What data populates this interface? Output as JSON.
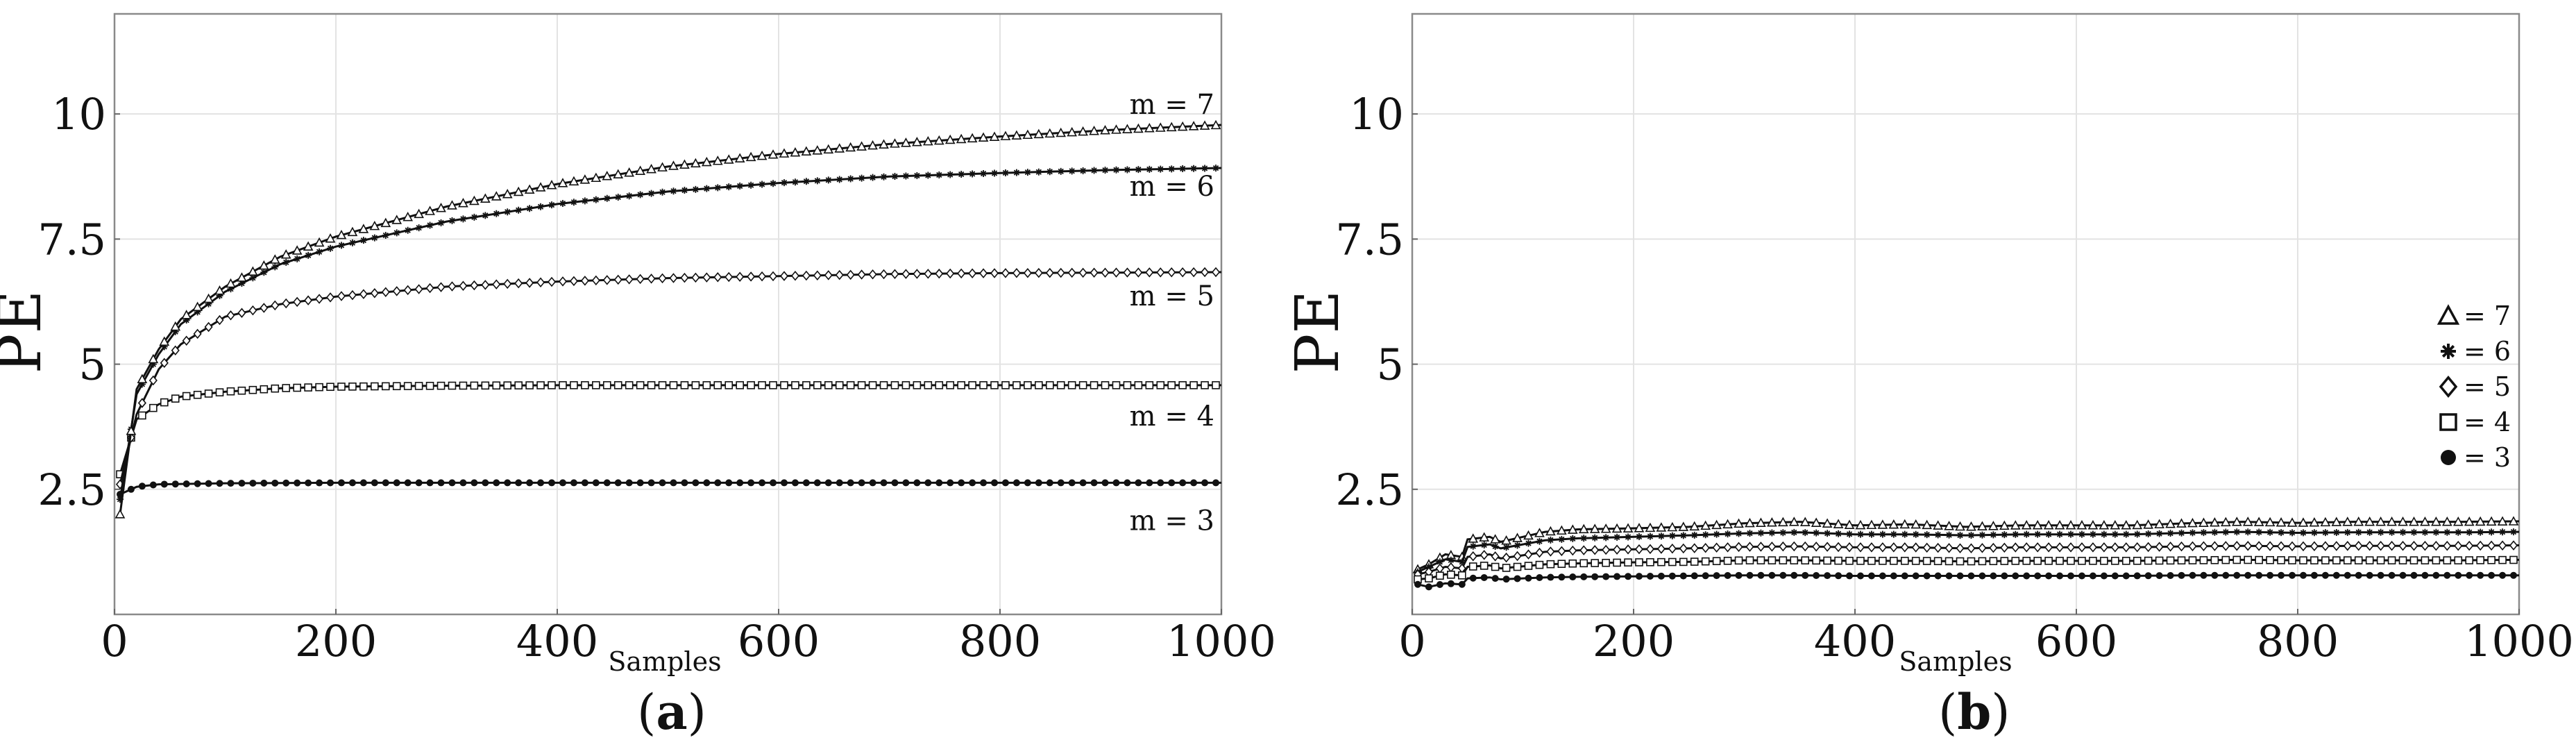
{
  "chart_data": [
    {
      "type": "line",
      "caption_letter": "a",
      "ylabel": "PE",
      "xlabel": "Samples",
      "xlim": [
        0,
        1000
      ],
      "ylim": [
        0,
        12
      ],
      "xticks": [
        "0",
        "200",
        "400",
        "600",
        "800",
        "1000"
      ],
      "yticks": [
        {
          "value": 2.5,
          "label": "2.5"
        },
        {
          "value": 5,
          "label": "5"
        },
        {
          "value": 7.5,
          "label": "7.5"
        },
        {
          "value": 10,
          "label": "10"
        }
      ],
      "grid": true,
      "annotations_position": "right end of each curve",
      "series": [
        {
          "name": "m = 3",
          "marker": "dot",
          "x": [
            5,
            20,
            40,
            100,
            200,
            300,
            400,
            500,
            600,
            700,
            800,
            900,
            1000
          ],
          "values": [
            2.4,
            2.55,
            2.6,
            2.62,
            2.63,
            2.63,
            2.63,
            2.63,
            2.63,
            2.63,
            2.63,
            2.63,
            2.63
          ]
        },
        {
          "name": "m = 4",
          "marker": "square",
          "x": [
            5,
            20,
            40,
            60,
            100,
            150,
            200,
            300,
            400,
            500,
            600,
            700,
            800,
            900,
            1000
          ],
          "values": [
            2.8,
            3.9,
            4.2,
            4.35,
            4.45,
            4.52,
            4.55,
            4.57,
            4.58,
            4.58,
            4.58,
            4.58,
            4.58,
            4.58,
            4.58
          ]
        },
        {
          "name": "m = 5",
          "marker": "diamond",
          "x": [
            5,
            20,
            40,
            60,
            100,
            150,
            200,
            300,
            400,
            500,
            600,
            700,
            800,
            900,
            1000
          ],
          "values": [
            2.6,
            4.0,
            4.9,
            5.4,
            5.95,
            6.2,
            6.35,
            6.55,
            6.65,
            6.72,
            6.76,
            6.8,
            6.82,
            6.83,
            6.84
          ]
        },
        {
          "name": "m = 6",
          "marker": "asterisk",
          "x": [
            5,
            20,
            40,
            60,
            100,
            150,
            200,
            300,
            400,
            500,
            600,
            700,
            800,
            900,
            1000
          ],
          "values": [
            2.3,
            4.4,
            5.2,
            5.8,
            6.45,
            7.0,
            7.35,
            7.85,
            8.2,
            8.45,
            8.62,
            8.75,
            8.82,
            8.88,
            8.92
          ]
        },
        {
          "name": "m = 7",
          "marker": "triangle",
          "x": [
            5,
            20,
            40,
            60,
            100,
            150,
            200,
            300,
            400,
            500,
            600,
            700,
            800,
            900,
            1000
          ],
          "values": [
            2.0,
            4.5,
            5.3,
            5.9,
            6.55,
            7.15,
            7.55,
            8.15,
            8.6,
            8.95,
            9.2,
            9.4,
            9.55,
            9.68,
            9.78
          ]
        }
      ]
    },
    {
      "type": "line",
      "caption_letter": "b",
      "ylabel": "PE",
      "xlabel": "Samples",
      "xlim": [
        0,
        1000
      ],
      "ylim": [
        0,
        12
      ],
      "xticks": [
        "0",
        "200",
        "400",
        "600",
        "800",
        "1000"
      ],
      "yticks": [
        {
          "value": 2.5,
          "label": "2.5"
        },
        {
          "value": 5,
          "label": "5"
        },
        {
          "value": 7.5,
          "label": "7.5"
        },
        {
          "value": 10,
          "label": "10"
        }
      ],
      "grid": true,
      "legend_position": "right",
      "series": [
        {
          "name": "= 7",
          "marker": "triangle",
          "x": [
            5,
            15,
            30,
            45,
            50,
            70,
            80,
            100,
            120,
            150,
            200,
            250,
            300,
            350,
            400,
            450,
            500,
            550,
            600,
            650,
            700,
            750,
            800,
            850,
            900,
            950,
            1000
          ],
          "values": [
            0.9,
            1.0,
            1.2,
            1.15,
            1.5,
            1.55,
            1.45,
            1.55,
            1.65,
            1.7,
            1.72,
            1.75,
            1.82,
            1.85,
            1.78,
            1.8,
            1.75,
            1.78,
            1.78,
            1.78,
            1.82,
            1.85,
            1.83,
            1.85,
            1.85,
            1.85,
            1.86
          ]
        },
        {
          "name": "= 6",
          "marker": "asterisk",
          "x": [
            5,
            15,
            30,
            45,
            50,
            70,
            80,
            100,
            120,
            150,
            200,
            250,
            300,
            350,
            400,
            450,
            500,
            550,
            600,
            650,
            700,
            750,
            800,
            850,
            900,
            950,
            1000
          ],
          "values": [
            0.85,
            0.95,
            1.1,
            1.05,
            1.35,
            1.4,
            1.32,
            1.4,
            1.48,
            1.52,
            1.55,
            1.58,
            1.62,
            1.64,
            1.6,
            1.6,
            1.58,
            1.6,
            1.6,
            1.6,
            1.63,
            1.65,
            1.63,
            1.64,
            1.64,
            1.64,
            1.65
          ]
        },
        {
          "name": "= 5",
          "marker": "diamond",
          "x": [
            5,
            15,
            30,
            45,
            50,
            70,
            80,
            100,
            120,
            150,
            200,
            250,
            300,
            350,
            400,
            450,
            500,
            550,
            600,
            650,
            700,
            750,
            800,
            850,
            900,
            950,
            1000
          ],
          "values": [
            0.8,
            0.85,
            0.95,
            0.92,
            1.15,
            1.2,
            1.12,
            1.18,
            1.25,
            1.28,
            1.3,
            1.32,
            1.35,
            1.36,
            1.34,
            1.34,
            1.32,
            1.34,
            1.34,
            1.34,
            1.36,
            1.37,
            1.36,
            1.37,
            1.37,
            1.37,
            1.38
          ]
        },
        {
          "name": "= 4",
          "marker": "square",
          "x": [
            5,
            15,
            30,
            45,
            50,
            70,
            80,
            100,
            120,
            150,
            200,
            250,
            300,
            350,
            400,
            450,
            500,
            550,
            600,
            650,
            700,
            750,
            800,
            850,
            900,
            950,
            1000
          ],
          "values": [
            0.7,
            0.72,
            0.8,
            0.78,
            0.95,
            0.98,
            0.92,
            0.96,
            1.0,
            1.02,
            1.04,
            1.05,
            1.08,
            1.08,
            1.07,
            1.07,
            1.06,
            1.07,
            1.07,
            1.07,
            1.08,
            1.09,
            1.08,
            1.08,
            1.08,
            1.08,
            1.09
          ]
        },
        {
          "name": "= 3",
          "marker": "dot",
          "x": [
            5,
            15,
            30,
            45,
            50,
            70,
            80,
            100,
            120,
            150,
            200,
            250,
            300,
            350,
            400,
            450,
            500,
            550,
            600,
            650,
            700,
            750,
            800,
            850,
            900,
            950,
            1000
          ],
          "values": [
            0.6,
            0.55,
            0.62,
            0.6,
            0.72,
            0.74,
            0.7,
            0.72,
            0.74,
            0.75,
            0.76,
            0.77,
            0.78,
            0.78,
            0.77,
            0.77,
            0.77,
            0.77,
            0.77,
            0.77,
            0.78,
            0.78,
            0.78,
            0.78,
            0.78,
            0.78,
            0.78
          ]
        }
      ]
    }
  ]
}
